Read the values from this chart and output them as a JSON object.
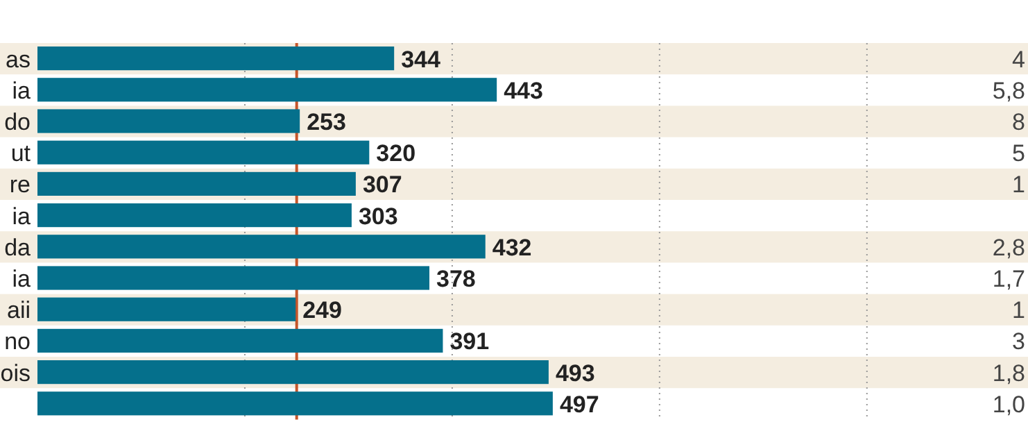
{
  "chart_data": {
    "type": "bar",
    "orientation": "horizontal",
    "categories": [
      "as",
      "ia",
      "do",
      "ut",
      "re",
      "ia",
      "da",
      "ia",
      "aii",
      "no",
      "ois",
      null
    ],
    "values": [
      344,
      443,
      253,
      320,
      307,
      303,
      432,
      378,
      249,
      391,
      493,
      497
    ],
    "color": "#05708c",
    "data_labels": true,
    "grid": "x",
    "xlim": [
      0,
      950
    ],
    "xticks": [
      {
        "value": 200,
        "label": null
      },
      {
        "value": 400,
        "label": null
      },
      {
        "value": 600,
        "label": null
      },
      {
        "value": 800,
        "label": null
      }
    ],
    "tick_labels": "y",
    "ref_lines": [
      {
        "axis": "x",
        "value": 250,
        "color": "#c5562b"
      }
    ],
    "annotations": [
      "4",
      "5,8",
      "8",
      "5",
      "1",
      null,
      "2,8",
      "1,7",
      "1",
      "3",
      "1,8",
      "1,0"
    ]
  }
}
